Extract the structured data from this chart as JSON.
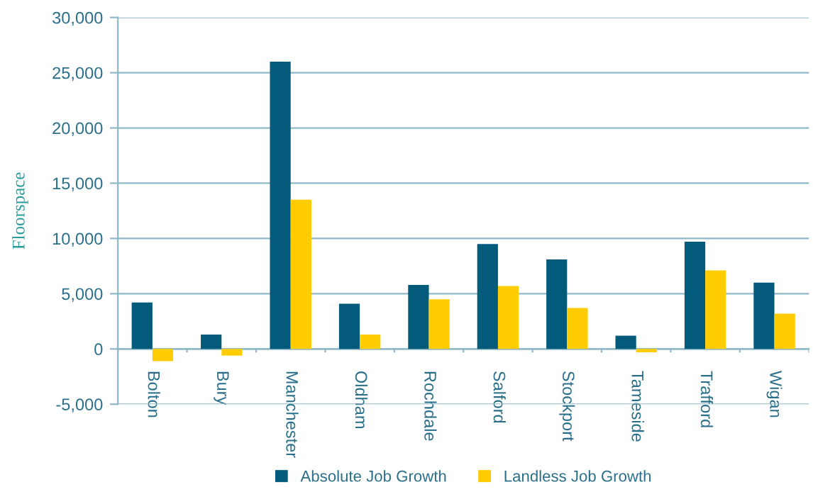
{
  "chart_data": {
    "type": "bar",
    "ylabel": "Floorspace",
    "categories": [
      "Bolton",
      "Bury",
      "Manchester",
      "Oldham",
      "Rochdale",
      "Salford",
      "Stockport",
      "Tameside",
      "Trafford",
      "Wigan"
    ],
    "series": [
      {
        "name": "Absolute Job Growth",
        "color": "#035a7a",
        "values": [
          4200,
          1300,
          26000,
          4100,
          5800,
          9500,
          8100,
          1200,
          9700,
          6000
        ]
      },
      {
        "name": "Landless Job Growth",
        "color": "#ffcc00",
        "values": [
          -1100,
          -600,
          13500,
          1300,
          4500,
          5700,
          3700,
          -300,
          7100,
          3200
        ]
      }
    ],
    "ylim": [
      -5000,
      30000
    ],
    "yticks": [
      {
        "value": -5000,
        "label": "-5,000"
      },
      {
        "value": 0,
        "label": "0"
      },
      {
        "value": 5000,
        "label": "5,000"
      },
      {
        "value": 10000,
        "label": "10,000"
      },
      {
        "value": 15000,
        "label": "15,000"
      },
      {
        "value": 20000,
        "label": "20,000"
      },
      {
        "value": 25000,
        "label": "25,000"
      },
      {
        "value": 30000,
        "label": "30,000"
      }
    ],
    "grid": "y",
    "legend": "bottom"
  }
}
